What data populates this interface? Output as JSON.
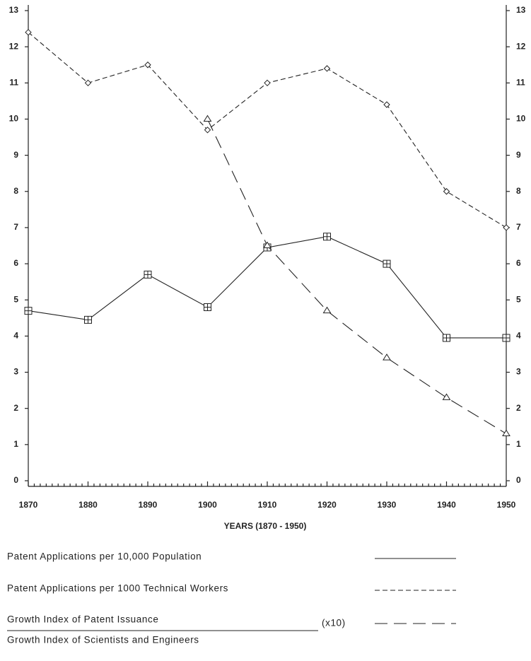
{
  "chart_data": {
    "type": "line",
    "xlabel": "YEARS (1870 - 1950)",
    "x": [
      1870,
      1880,
      1890,
      1900,
      1910,
      1920,
      1930,
      1940,
      1950
    ],
    "xlim": [
      1870,
      1950
    ],
    "xticks": [
      1870,
      1880,
      1890,
      1900,
      1910,
      1920,
      1930,
      1940,
      1950
    ],
    "ylim": [
      0,
      13
    ],
    "yticks": [
      0,
      1,
      2,
      3,
      4,
      5,
      6,
      7,
      8,
      9,
      10,
      11,
      12,
      13
    ],
    "y2lim": [
      0,
      13
    ],
    "y2ticks": [
      0,
      1,
      2,
      3,
      4,
      5,
      6,
      7,
      8,
      9,
      10,
      11,
      12,
      13
    ],
    "series": [
      {
        "name": "Patent Applications per 10,000 Population",
        "color": "#222222",
        "linestyle": "solid",
        "marker": "square",
        "values": [
          4.7,
          4.45,
          5.7,
          4.8,
          6.45,
          6.75,
          6.0,
          3.95,
          3.95
        ]
      },
      {
        "name": "Patent Applications per 1000 Technical Workers",
        "color": "#222222",
        "linestyle": "dashed",
        "marker": "diamond",
        "values": [
          12.4,
          11.0,
          11.5,
          9.7,
          11.0,
          11.4,
          10.4,
          8.0,
          7.0
        ]
      },
      {
        "name": "Growth Index of Patent Issuance",
        "name_denominator": "Growth Index of Scientists and Engineers",
        "scale_label": "(x10)",
        "color": "#222222",
        "linestyle": "longdash",
        "marker": "triangle",
        "values": [
          null,
          null,
          null,
          10.0,
          6.5,
          4.7,
          3.4,
          2.3,
          1.3
        ]
      }
    ]
  }
}
